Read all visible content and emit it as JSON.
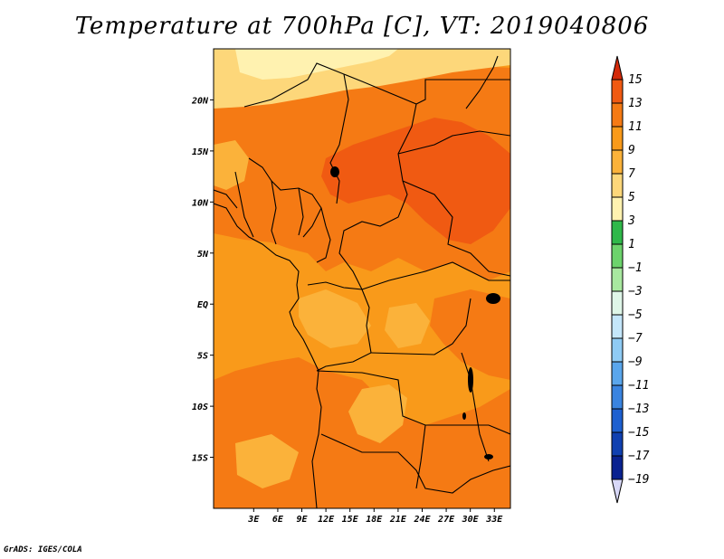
{
  "title": "Temperature at 700hPa [C], VT: 2019040806",
  "credit": "GrADS: IGES/COLA",
  "map": {
    "lon_range": [
      -2,
      35
    ],
    "lat_range": [
      -20,
      25
    ],
    "lon_ticks": [
      {
        "value": 3,
        "label": "3E"
      },
      {
        "value": 6,
        "label": "6E"
      },
      {
        "value": 9,
        "label": "9E"
      },
      {
        "value": 12,
        "label": "12E"
      },
      {
        "value": 15,
        "label": "15E"
      },
      {
        "value": 18,
        "label": "18E"
      },
      {
        "value": 21,
        "label": "21E"
      },
      {
        "value": 24,
        "label": "24E"
      },
      {
        "value": 27,
        "label": "27E"
      },
      {
        "value": 30,
        "label": "30E"
      },
      {
        "value": 33,
        "label": "33E"
      }
    ],
    "lat_ticks": [
      {
        "value": 20,
        "label": "20N"
      },
      {
        "value": 15,
        "label": "15N"
      },
      {
        "value": 10,
        "label": "10N"
      },
      {
        "value": 5,
        "label": "5N"
      },
      {
        "value": 0,
        "label": "EQ"
      },
      {
        "value": -5,
        "label": "5S"
      },
      {
        "value": -10,
        "label": "10S"
      },
      {
        "value": -15,
        "label": "15S"
      }
    ]
  },
  "colorbar": {
    "levels": [
      {
        "label": "15",
        "color": "#e63a0a"
      },
      {
        "label": "13",
        "color": "#f05a12"
      },
      {
        "label": "11",
        "color": "#f57a14"
      },
      {
        "label": "9",
        "color": "#f99a1a"
      },
      {
        "label": "7",
        "color": "#fbb23a"
      },
      {
        "label": "5",
        "color": "#fdd77a"
      },
      {
        "label": "3",
        "color": "#fff2b0"
      },
      {
        "label": "1",
        "color": "#2fb84a"
      },
      {
        "label": "−1",
        "color": "#6cd36c"
      },
      {
        "label": "−3",
        "color": "#a8e8a0"
      },
      {
        "label": "−5",
        "color": "#dff6e8"
      },
      {
        "label": "−7",
        "color": "#c4e6fa"
      },
      {
        "label": "−9",
        "color": "#8fcbf4"
      },
      {
        "label": "−11",
        "color": "#5aa6ec"
      },
      {
        "label": "−13",
        "color": "#3a84e0"
      },
      {
        "label": "−15",
        "color": "#1e60d0"
      },
      {
        "label": "−17",
        "color": "#1040b0"
      },
      {
        "label": "−19",
        "color": "#0a2290"
      }
    ],
    "over_color": "#d42a0a",
    "under_color": "#d8d8f8"
  }
}
